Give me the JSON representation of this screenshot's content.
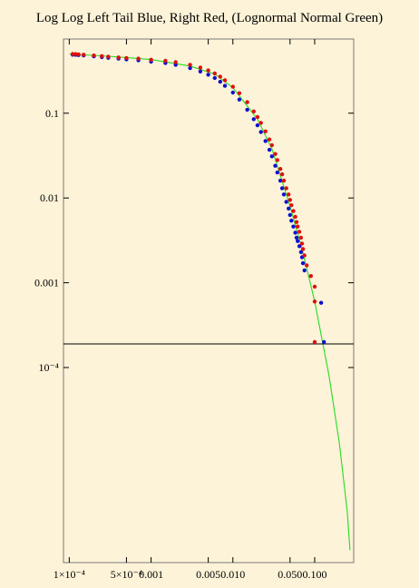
{
  "chart_data": {
    "type": "scatter",
    "title": "Log Log Left Tail Blue, Right Red, (Lognormal Normal Green)",
    "x_scale": "log",
    "y_scale": "log",
    "xlim": [
      8.5e-05,
      0.3
    ],
    "ylim": [
      5e-07,
      0.75
    ],
    "grid": false,
    "legend": "none",
    "x_ticks": [
      {
        "value": 0.0001,
        "label": "1×10⁻⁴"
      },
      {
        "value": 0.0005,
        "label": "5×10⁻⁴"
      },
      {
        "value": 0.001,
        "label": "0.001"
      },
      {
        "value": 0.005,
        "label": "0.005"
      },
      {
        "value": 0.01,
        "label": "0.010"
      },
      {
        "value": 0.05,
        "label": "0.050"
      },
      {
        "value": 0.1,
        "label": "0.100"
      }
    ],
    "y_ticks": [
      {
        "value": 0.1,
        "label": "0.1"
      },
      {
        "value": 0.01,
        "label": "0.01"
      },
      {
        "value": 0.001,
        "label": "0.001"
      },
      {
        "value": 0.0001,
        "label": "10⁻⁴"
      }
    ],
    "reference_line": {
      "y": 0.00019,
      "color": "#000000"
    },
    "colors": {
      "left_tail": "#1010d0",
      "right_tail": "#e01010",
      "fit": "#22dd22"
    },
    "series": [
      {
        "color": "#1010d0",
        "points": [
          [
            0.00011,
            0.49
          ],
          [
            0.00012,
            0.488
          ],
          [
            0.00013,
            0.485
          ],
          [
            0.00015,
            0.48
          ],
          [
            0.0002,
            0.468
          ],
          [
            0.00025,
            0.458
          ],
          [
            0.0003,
            0.45
          ],
          [
            0.0004,
            0.44
          ],
          [
            0.0005,
            0.432
          ],
          [
            0.0007,
            0.42
          ],
          [
            0.001,
            0.405
          ],
          [
            0.0015,
            0.39
          ],
          [
            0.002,
            0.372
          ],
          [
            0.003,
            0.34
          ],
          [
            0.004,
            0.31
          ],
          [
            0.005,
            0.285
          ],
          [
            0.006,
            0.26
          ],
          [
            0.007,
            0.235
          ],
          [
            0.008,
            0.21
          ],
          [
            0.01,
            0.175
          ],
          [
            0.012,
            0.145
          ],
          [
            0.015,
            0.11
          ],
          [
            0.018,
            0.085
          ],
          [
            0.02,
            0.072
          ],
          [
            0.022,
            0.06
          ],
          [
            0.025,
            0.047
          ],
          [
            0.028,
            0.037
          ],
          [
            0.03,
            0.031
          ],
          [
            0.033,
            0.024
          ],
          [
            0.035,
            0.02
          ],
          [
            0.038,
            0.016
          ],
          [
            0.04,
            0.013
          ],
          [
            0.042,
            0.011
          ],
          [
            0.045,
            0.009
          ],
          [
            0.048,
            0.0075
          ],
          [
            0.05,
            0.0063
          ],
          [
            0.052,
            0.0054
          ],
          [
            0.055,
            0.0046
          ],
          [
            0.058,
            0.0039
          ],
          [
            0.06,
            0.0034
          ],
          [
            0.062,
            0.0031
          ],
          [
            0.065,
            0.0027
          ],
          [
            0.068,
            0.0023
          ],
          [
            0.07,
            0.002
          ],
          [
            0.072,
            0.0017
          ],
          [
            0.075,
            0.0014
          ],
          [
            0.12,
            0.00058
          ],
          [
            0.13,
            0.0002
          ]
        ]
      },
      {
        "color": "#e01010",
        "points": [
          [
            0.00011,
            0.5
          ],
          [
            0.00012,
            0.498
          ],
          [
            0.00013,
            0.495
          ],
          [
            0.00015,
            0.49
          ],
          [
            0.0002,
            0.48
          ],
          [
            0.00025,
            0.472
          ],
          [
            0.0003,
            0.465
          ],
          [
            0.0004,
            0.455
          ],
          [
            0.0005,
            0.448
          ],
          [
            0.0007,
            0.44
          ],
          [
            0.001,
            0.428
          ],
          [
            0.0015,
            0.415
          ],
          [
            0.002,
            0.4
          ],
          [
            0.003,
            0.372
          ],
          [
            0.004,
            0.345
          ],
          [
            0.005,
            0.32
          ],
          [
            0.006,
            0.295
          ],
          [
            0.007,
            0.27
          ],
          [
            0.008,
            0.245
          ],
          [
            0.01,
            0.205
          ],
          [
            0.012,
            0.172
          ],
          [
            0.015,
            0.135
          ],
          [
            0.018,
            0.105
          ],
          [
            0.02,
            0.09
          ],
          [
            0.022,
            0.077
          ],
          [
            0.025,
            0.061
          ],
          [
            0.028,
            0.049
          ],
          [
            0.03,
            0.042
          ],
          [
            0.033,
            0.033
          ],
          [
            0.035,
            0.028
          ],
          [
            0.038,
            0.022
          ],
          [
            0.04,
            0.019
          ],
          [
            0.042,
            0.016
          ],
          [
            0.045,
            0.013
          ],
          [
            0.048,
            0.011
          ],
          [
            0.05,
            0.0095
          ],
          [
            0.052,
            0.0082
          ],
          [
            0.055,
            0.007
          ],
          [
            0.058,
            0.006
          ],
          [
            0.06,
            0.0052
          ],
          [
            0.062,
            0.0046
          ],
          [
            0.065,
            0.004
          ],
          [
            0.068,
            0.0034
          ],
          [
            0.07,
            0.0029
          ],
          [
            0.072,
            0.0025
          ],
          [
            0.075,
            0.0021
          ],
          [
            0.08,
            0.0016
          ],
          [
            0.09,
            0.0012
          ],
          [
            0.1,
            0.0009
          ],
          [
            0.1,
            0.0006
          ],
          [
            0.1,
            0.0002
          ]
        ]
      },
      {
        "color": "#22dd22",
        "points": [
          [
            0.0001,
            0.5
          ],
          [
            0.0003,
            0.47
          ],
          [
            0.001,
            0.43
          ],
          [
            0.003,
            0.36
          ],
          [
            0.006,
            0.29
          ],
          [
            0.01,
            0.2
          ],
          [
            0.02,
            0.085
          ],
          [
            0.03,
            0.038
          ],
          [
            0.05,
            0.008
          ],
          [
            0.07,
            0.0025
          ],
          [
            0.1,
            0.0006
          ],
          [
            0.15,
            8e-05
          ],
          [
            0.2,
            1.3e-05
          ],
          [
            0.25,
            2e-06
          ],
          [
            0.27,
            7e-07
          ]
        ]
      }
    ]
  }
}
